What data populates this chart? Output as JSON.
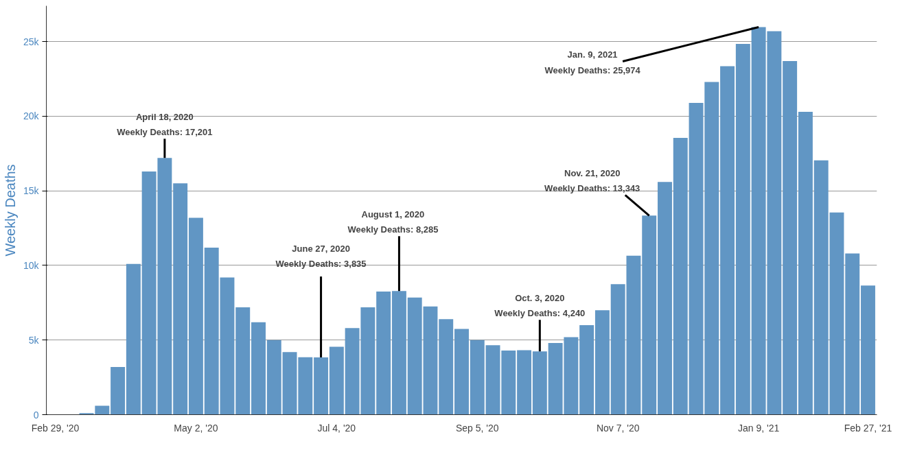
{
  "chart_data": {
    "type": "bar",
    "ylabel": "Weekly Deaths",
    "color": "#6196c4",
    "x": [
      "2020-02-29",
      "2020-03-07",
      "2020-03-14",
      "2020-03-21",
      "2020-03-28",
      "2020-04-04",
      "2020-04-11",
      "2020-04-18",
      "2020-04-25",
      "2020-05-02",
      "2020-05-09",
      "2020-05-16",
      "2020-05-23",
      "2020-05-30",
      "2020-06-06",
      "2020-06-13",
      "2020-06-20",
      "2020-06-27",
      "2020-07-04",
      "2020-07-11",
      "2020-07-18",
      "2020-07-25",
      "2020-08-01",
      "2020-08-08",
      "2020-08-15",
      "2020-08-22",
      "2020-08-29",
      "2020-09-05",
      "2020-09-12",
      "2020-09-19",
      "2020-09-26",
      "2020-10-03",
      "2020-10-10",
      "2020-10-17",
      "2020-10-24",
      "2020-10-31",
      "2020-11-07",
      "2020-11-14",
      "2020-11-21",
      "2020-11-28",
      "2020-12-05",
      "2020-12-12",
      "2020-12-19",
      "2020-12-26",
      "2021-01-02",
      "2021-01-09",
      "2021-01-16",
      "2021-01-23",
      "2021-01-30",
      "2021-02-06",
      "2021-02-13",
      "2021-02-20",
      "2021-02-27"
    ],
    "values": [
      0,
      0,
      100,
      600,
      3200,
      10100,
      16300,
      17201,
      15500,
      13200,
      11200,
      9200,
      7200,
      6200,
      5000,
      4200,
      3850,
      3835,
      4550,
      5800,
      7200,
      8250,
      8285,
      7850,
      7250,
      6400,
      5750,
      5000,
      4650,
      4300,
      4320,
      4240,
      4800,
      5200,
      6000,
      7000,
      8750,
      10650,
      13343,
      15600,
      18550,
      20900,
      22300,
      23350,
      24850,
      25974,
      25700,
      23700,
      20300,
      17050,
      13550,
      10800,
      8650
    ],
    "xlim": [
      "2020-02-25",
      "2021-03-03"
    ],
    "xticks": [
      {
        "value": "2020-02-29",
        "label": "Feb 29, '20"
      },
      {
        "value": "2020-05-02",
        "label": "May 2, '20"
      },
      {
        "value": "2020-07-04",
        "label": "Jul 4, '20"
      },
      {
        "value": "2020-09-05",
        "label": "Sep 5, '20"
      },
      {
        "value": "2020-11-07",
        "label": "Nov 7, '20"
      },
      {
        "value": "2021-01-09",
        "label": "Jan 9, '21"
      },
      {
        "value": "2021-02-27",
        "label": "Feb 27, '21"
      }
    ],
    "ylim": [
      0,
      27400
    ],
    "yticks": [
      {
        "value": 0,
        "label": "0"
      },
      {
        "value": 5000,
        "label": "5k"
      },
      {
        "value": 10000,
        "label": "10k"
      },
      {
        "value": 15000,
        "label": "15k"
      },
      {
        "value": 20000,
        "label": "20k"
      },
      {
        "value": 25000,
        "label": "25k"
      }
    ],
    "grid": "y",
    "annotations": [
      {
        "text": "April 18, 2020\nWeekly Deaths: 17,201",
        "x": "2020-04-18",
        "y": 17201
      },
      {
        "text": "June 27, 2020\nWeekly Deaths: 3,835",
        "x": "2020-06-27",
        "y": 3835
      },
      {
        "text": "August 1, 2020\nWeekly Deaths: 8,285",
        "x": "2020-08-01",
        "y": 8285
      },
      {
        "text": "Oct. 3, 2020\nWeekly Deaths: 4,240",
        "x": "2020-10-03",
        "y": 4240
      },
      {
        "text": "Nov. 21, 2020\nWeekly Deaths: 13,343",
        "x": "2020-11-21",
        "y": 13343
      },
      {
        "text": "Jan. 9, 2021\nWeekly Deaths: 25,974",
        "x": "2021-01-09",
        "y": 25974
      }
    ]
  }
}
